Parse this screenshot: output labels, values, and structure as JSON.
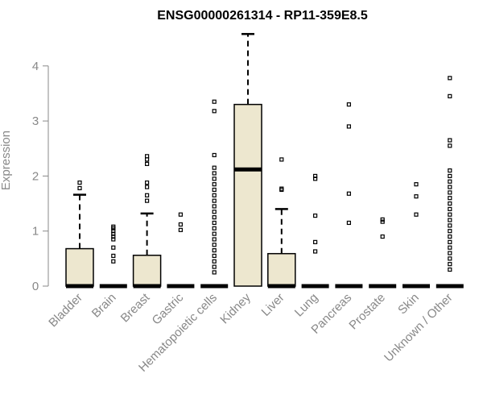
{
  "chart_data": {
    "type": "box",
    "title": "ENSG00000261314 - RP11-359E8.5",
    "xlabel": "",
    "ylabel": "Expression",
    "ylim": [
      0,
      4.6
    ],
    "yticks": [
      0,
      1,
      2,
      3,
      4
    ],
    "grid": false,
    "legend": "none",
    "colors": {
      "box_fill": "#ede7cf",
      "box_stroke": "#000000",
      "outlier": "#000000",
      "axis": "#888888"
    },
    "categories": [
      "Bladder",
      "Brain",
      "Breast",
      "Gastric",
      "Hematopoietic cells",
      "Kidney",
      "Liver",
      "Lung",
      "Pancreas",
      "Prostate",
      "Skin",
      "Unknown / Other"
    ],
    "boxes": [
      {
        "q1": 0,
        "median": 0,
        "q3": 0.68,
        "whisker_low": 0,
        "whisker_high": 1.66,
        "outliers": [
          1.78,
          1.88
        ]
      },
      {
        "q1": 0,
        "median": 0,
        "q3": 0,
        "whisker_low": 0,
        "whisker_high": 0,
        "outliers": [
          0.45,
          0.55,
          0.7,
          0.85,
          0.9,
          0.95,
          1.0,
          1.05,
          1.08
        ]
      },
      {
        "q1": 0,
        "median": 0,
        "q3": 0.56,
        "whisker_low": 0,
        "whisker_high": 1.32,
        "outliers": [
          1.55,
          1.65,
          1.8,
          1.88,
          2.22,
          2.3,
          2.36
        ]
      },
      {
        "q1": 0,
        "median": 0,
        "q3": 0,
        "whisker_low": 0,
        "whisker_high": 0,
        "outliers": [
          1.02,
          1.12,
          1.3
        ]
      },
      {
        "q1": 0,
        "median": 0,
        "q3": 0,
        "whisker_low": 0,
        "whisker_high": 0,
        "outliers": [
          0.25,
          0.35,
          0.45,
          0.55,
          0.65,
          0.75,
          0.85,
          0.95,
          1.05,
          1.15,
          1.25,
          1.35,
          1.45,
          1.55,
          1.65,
          1.75,
          1.85,
          1.95,
          2.05,
          2.15,
          2.38,
          3.18,
          3.35
        ]
      },
      {
        "q1": 0,
        "median": 2.12,
        "q3": 3.3,
        "whisker_low": 0,
        "whisker_high": 4.58,
        "outliers": []
      },
      {
        "q1": 0,
        "median": 0,
        "q3": 0.59,
        "whisker_low": 0,
        "whisker_high": 1.4,
        "outliers": [
          1.75,
          1.77,
          2.3
        ]
      },
      {
        "q1": 0,
        "median": 0,
        "q3": 0,
        "whisker_low": 0,
        "whisker_high": 0,
        "outliers": [
          0.63,
          0.8,
          1.28,
          1.95,
          2.0
        ]
      },
      {
        "q1": 0,
        "median": 0,
        "q3": 0,
        "whisker_low": 0,
        "whisker_high": 0,
        "outliers": [
          1.15,
          1.68,
          2.9,
          3.3
        ]
      },
      {
        "q1": 0,
        "median": 0,
        "q3": 0,
        "whisker_low": 0,
        "whisker_high": 0,
        "outliers": [
          0.9,
          1.17,
          1.21
        ]
      },
      {
        "q1": 0,
        "median": 0,
        "q3": 0,
        "whisker_low": 0,
        "whisker_high": 0,
        "outliers": [
          1.3,
          1.63,
          1.85
        ]
      },
      {
        "q1": 0,
        "median": 0,
        "q3": 0,
        "whisker_low": 0,
        "whisker_high": 0,
        "outliers": [
          0.3,
          0.4,
          0.5,
          0.6,
          0.7,
          0.8,
          0.9,
          1.0,
          1.1,
          1.2,
          1.3,
          1.4,
          1.5,
          1.6,
          1.7,
          1.8,
          1.9,
          2.0,
          2.1,
          2.55,
          2.65,
          3.45,
          3.78
        ]
      }
    ]
  }
}
